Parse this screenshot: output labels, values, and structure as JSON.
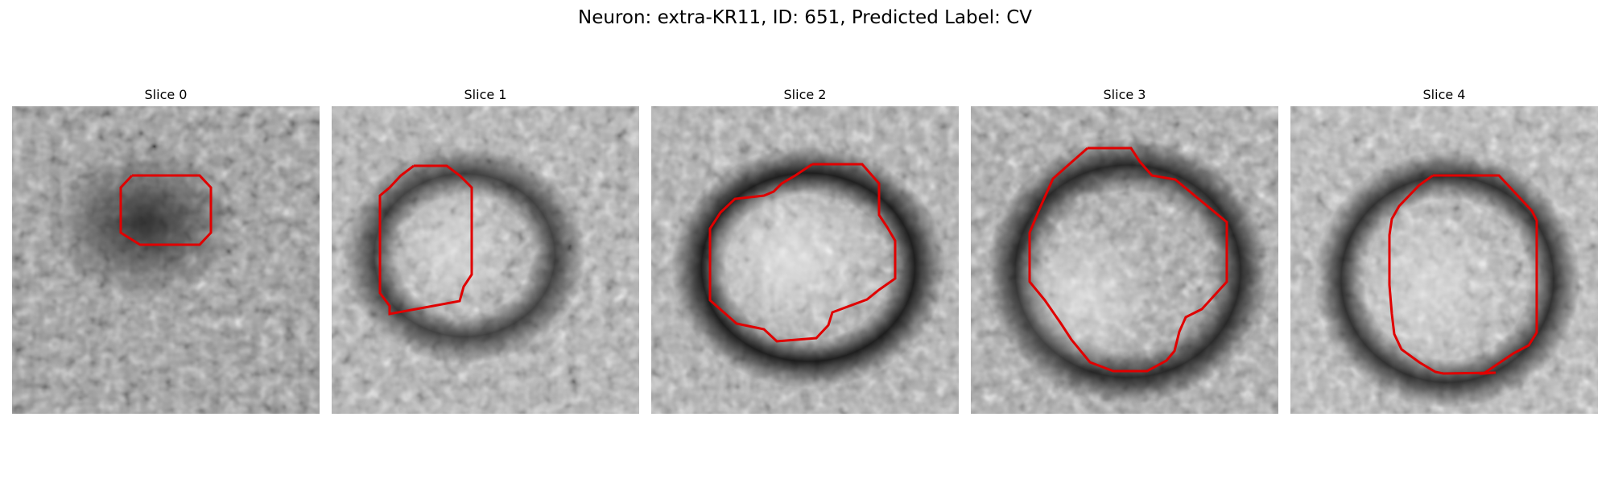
{
  "figure": {
    "title": "Neuron: extra-KR11, ID: 651, Predicted Label: CV"
  },
  "panels": [
    {
      "title": "Slice 0",
      "contour_color": "#e00000"
    },
    {
      "title": "Slice 1",
      "contour_color": "#e00000"
    },
    {
      "title": "Slice 2",
      "contour_color": "#e00000"
    },
    {
      "title": "Slice 3",
      "contour_color": "#e00000"
    },
    {
      "title": "Slice 4",
      "contour_color": "#e00000"
    }
  ]
}
